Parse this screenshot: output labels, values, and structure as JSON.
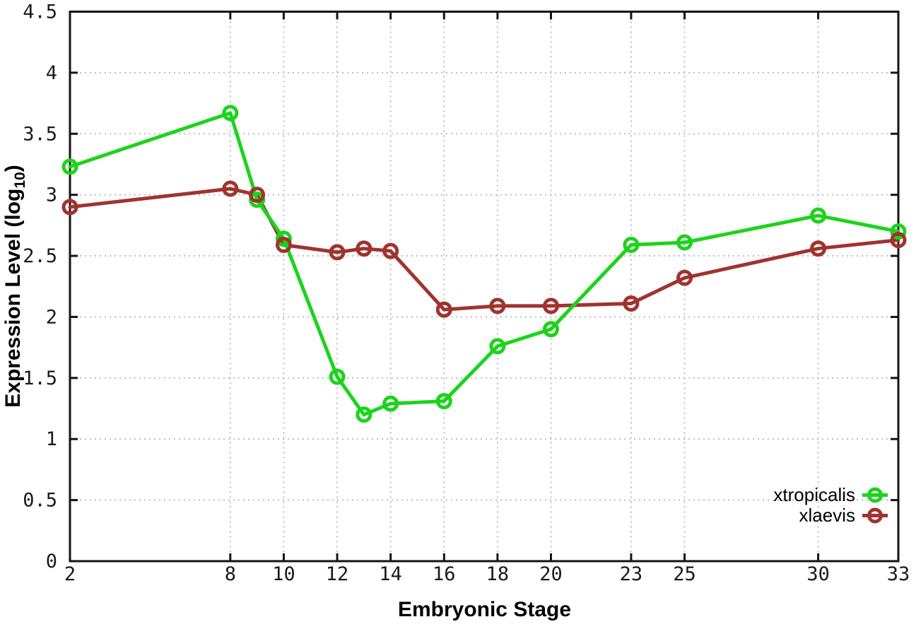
{
  "chart_data": {
    "type": "line",
    "title": "",
    "xlabel": "Embryonic Stage",
    "ylabel": "Expression Level (log10)",
    "ylabel_parts": {
      "base": "Expression Level (log",
      "sub": "10",
      "close": ")"
    },
    "x": [
      2,
      8,
      9,
      10,
      12,
      13,
      14,
      16,
      18,
      20,
      23,
      25,
      30,
      33
    ],
    "xticks": [
      2,
      8,
      10,
      12,
      14,
      16,
      18,
      20,
      23,
      25,
      30,
      33
    ],
    "yticks": [
      0,
      0.5,
      1,
      1.5,
      2,
      2.5,
      3,
      3.5,
      4,
      4.5
    ],
    "xlim": [
      2,
      33
    ],
    "ylim": [
      0,
      4.5
    ],
    "grid": true,
    "grid_style": "dotted",
    "marker": "open-circle",
    "legend_position": "inside-bottom-right",
    "series": [
      {
        "name": "xtropicalis",
        "color": "#1bd41b",
        "values": [
          3.23,
          3.67,
          2.96,
          2.64,
          1.51,
          1.2,
          1.29,
          1.31,
          1.76,
          1.9,
          2.59,
          2.61,
          2.83,
          2.7
        ]
      },
      {
        "name": "xlaevis",
        "color": "#a0332f",
        "values": [
          2.9,
          3.05,
          3.0,
          2.59,
          2.53,
          2.56,
          2.54,
          2.06,
          2.09,
          2.09,
          2.11,
          2.32,
          2.56,
          2.63
        ]
      }
    ]
  },
  "colors": {
    "background": "#ffffff",
    "axis": "#141414",
    "grid": "#bdbdbd",
    "tick_text": "#1a1a1a",
    "title_text": "#000000"
  }
}
